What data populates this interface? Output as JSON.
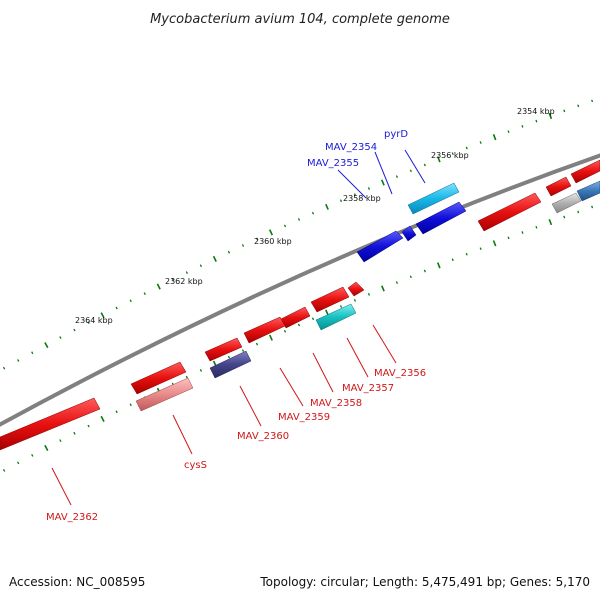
{
  "title": "Mycobacterium avium 104, complete genome",
  "footer": {
    "accession": "Accession: NC_008595",
    "topology": "Topology: circular; Length: 5,475,491 bp; Genes: 5,170"
  },
  "scale_labels": [
    "2354 kbp",
    "2356 kbp",
    "2358 kbp",
    "2360 kbp",
    "2362 kbp",
    "2364 kbp"
  ],
  "gene_labels": {
    "pyrD": "pyrD",
    "MAV_2354": "MAV_2354",
    "MAV_2355": "MAV_2355",
    "MAV_2356": "MAV_2356",
    "MAV_2357": "MAV_2357",
    "MAV_2358": "MAV_2358",
    "MAV_2359": "MAV_2359",
    "MAV_2360": "MAV_2360",
    "cysS": "cysS",
    "MAV_2362": "MAV_2362"
  },
  "colors": {
    "backbone": "#808080",
    "tick": "#0b7a0b",
    "red_gene": "#e81010",
    "pink_gene": "#e88a8a",
    "blue_gene": "#1010d8",
    "cyan_gene": "#18b8e8",
    "teal_gene": "#18c0c0",
    "navy_gene": "#44448a",
    "grey_gene": "#b0b0b0",
    "steel_gene": "#3a78b8",
    "label_blue": "#1a1ad8",
    "label_red": "#d01818"
  }
}
